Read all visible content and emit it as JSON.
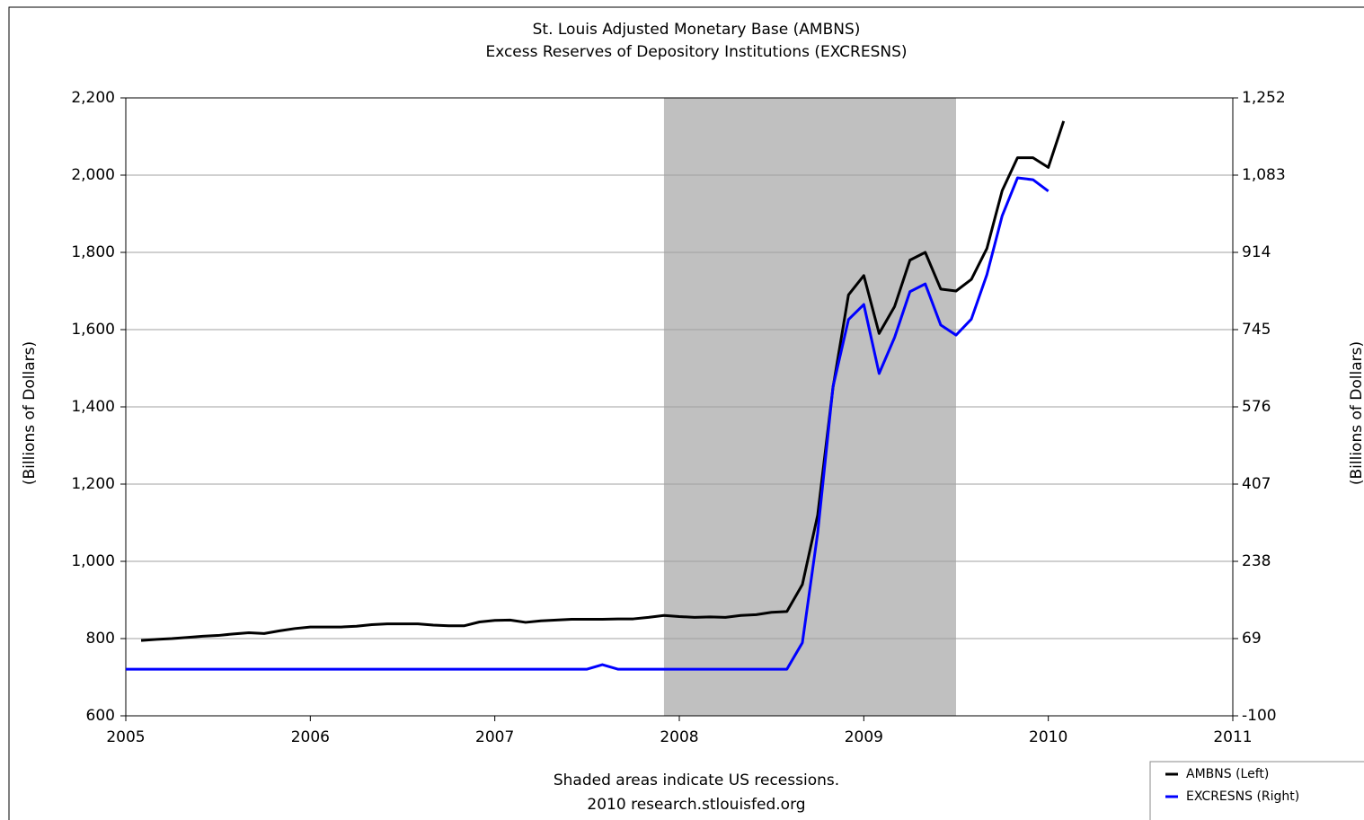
{
  "chart_data": {
    "type": "line",
    "title": "St. Louis Adjusted Monetary Base (AMBNS)",
    "subtitle": "Excess Reserves of Depository Institutions (EXCRESNS)",
    "y_label": "(Billions of Dollars)",
    "y2_label": "(Billions of Dollars)",
    "footnote": "Shaded areas indicate US recessions.",
    "source": "2010 research.stlouisfed.org",
    "recessions": [
      [
        2007.917,
        2009.5
      ]
    ],
    "recession_color": "#c0c0c0",
    "grid": true,
    "legend": "bottom-right",
    "xlim": [
      2005,
      2011
    ],
    "xticks": [
      2005,
      2006,
      2007,
      2008,
      2009,
      2010,
      2011
    ],
    "ylim": [
      600,
      2200
    ],
    "yticks": [
      600,
      800,
      {
        "value": 1000,
        "label": "1,000"
      },
      {
        "value": 1200,
        "label": "1,200"
      },
      {
        "value": 1400,
        "label": "1,400"
      },
      {
        "value": 1600,
        "label": "1,600"
      },
      {
        "value": 1800,
        "label": "1,800"
      },
      {
        "value": 2000,
        "label": "2,000"
      },
      {
        "value": 2200,
        "label": "2,200"
      }
    ],
    "y2lim": [
      -100,
      1252
    ],
    "y2ticks": [
      -100,
      69,
      238,
      407,
      576,
      745,
      914,
      {
        "value": 1083,
        "label": "1,083"
      },
      {
        "value": 1252,
        "label": "1,252"
      }
    ],
    "x": [
      2005.0,
      2005.083,
      2005.167,
      2005.25,
      2005.333,
      2005.417,
      2005.5,
      2005.583,
      2005.667,
      2005.75,
      2005.833,
      2005.917,
      2006.0,
      2006.083,
      2006.167,
      2006.25,
      2006.333,
      2006.417,
      2006.5,
      2006.583,
      2006.667,
      2006.75,
      2006.833,
      2006.917,
      2007.0,
      2007.083,
      2007.167,
      2007.25,
      2007.333,
      2007.417,
      2007.5,
      2007.583,
      2007.667,
      2007.75,
      2007.833,
      2007.917,
      2008.0,
      2008.083,
      2008.167,
      2008.25,
      2008.333,
      2008.417,
      2008.5,
      2008.583,
      2008.667,
      2008.75,
      2008.833,
      2008.917,
      2009.0,
      2009.083,
      2009.167,
      2009.25,
      2009.333,
      2009.417,
      2009.5,
      2009.583,
      2009.667,
      2009.75,
      2009.833,
      2009.917,
      2010.0,
      2010.083
    ],
    "series": [
      {
        "name": "AMBNS (Left)",
        "color": "#000000",
        "values": [
          null,
          795,
          798,
          800,
          803,
          806,
          808,
          812,
          815,
          813,
          820,
          826,
          830,
          830,
          830,
          832,
          836,
          838,
          838,
          838,
          835,
          833,
          833,
          843,
          847,
          848,
          842,
          846,
          848,
          850,
          850,
          850,
          851,
          851,
          855,
          860,
          857,
          855,
          856,
          855,
          860,
          862,
          868,
          870,
          940,
          1120,
          1450,
          1690,
          1740,
          1590,
          1660,
          1780,
          1800,
          1705,
          1700,
          1730,
          1810,
          1960,
          2045,
          2045,
          2020,
          2140
        ]
      },
      {
        "name": "EXCRESNS (Right)",
        "color": "#0000ff",
        "axis": "y2",
        "values": [
          2,
          2,
          2,
          2,
          2,
          2,
          2,
          2,
          2,
          2,
          2,
          2,
          2,
          2,
          2,
          2,
          2,
          2,
          2,
          2,
          2,
          2,
          2,
          2,
          2,
          2,
          2,
          2,
          2,
          2,
          2,
          12,
          2,
          2,
          2,
          2,
          2,
          2,
          2,
          2,
          2,
          2,
          2,
          2,
          60,
          300,
          620,
          767,
          800,
          649,
          728,
          828,
          845,
          755,
          733,
          768,
          865,
          994,
          1077,
          1073,
          1048,
          null
        ]
      }
    ]
  }
}
